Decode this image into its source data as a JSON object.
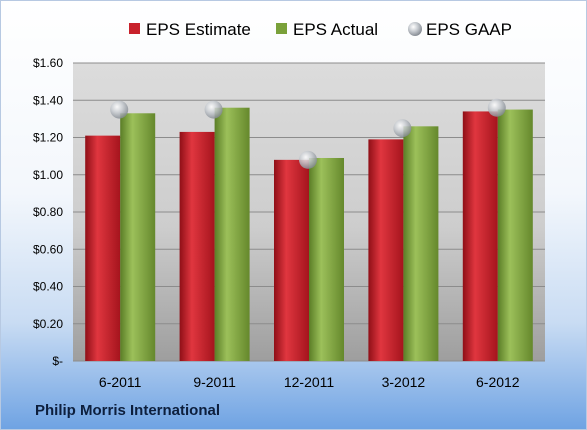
{
  "company": "Philip Morris International",
  "chart_data": {
    "type": "bar",
    "categories": [
      "6-2011",
      "9-2011",
      "12-2011",
      "3-2012",
      "6-2012"
    ],
    "series": [
      {
        "name": "EPS Estimate",
        "kind": "bar",
        "color": "#c8212b",
        "values": [
          1.21,
          1.23,
          1.08,
          1.19,
          1.34
        ]
      },
      {
        "name": "EPS Actual",
        "kind": "bar",
        "color": "#7aa13a",
        "values": [
          1.33,
          1.36,
          1.09,
          1.26,
          1.35
        ]
      },
      {
        "name": "EPS GAAP",
        "kind": "scatter",
        "color": "#b3b8bf",
        "values": [
          1.35,
          1.35,
          1.08,
          1.25,
          1.36
        ]
      }
    ],
    "yticks": [
      "$-",
      "$0.20",
      "$0.40",
      "$0.60",
      "$0.80",
      "$1.00",
      "$1.20",
      "$1.40",
      "$1.60"
    ],
    "ylim": [
      0,
      1.6
    ],
    "grid": true,
    "legend": "top"
  }
}
